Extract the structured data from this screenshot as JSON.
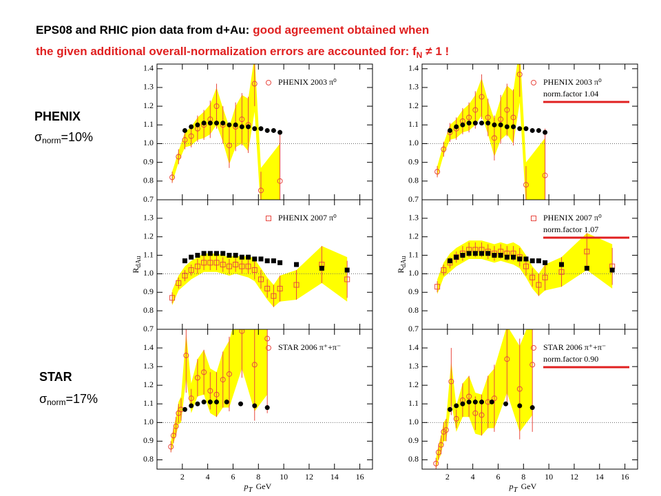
{
  "header": {
    "line1_black": "EPS08 and RHIC pion data from d+Au:",
    "line1_red": "good agreement obtained when",
    "line2": "the given additional overall-normalization errors are accounted for:  f",
    "line2_sub": "N",
    "line2_end": "≠ 1 !"
  },
  "side_labels": [
    {
      "name": "PHENIX",
      "symbol": "σ",
      "sub": "norm",
      "value": "=10%"
    },
    {
      "name": "STAR",
      "symbol": "σ",
      "sub": "norm",
      "value": "=17%"
    }
  ],
  "chart_data": [
    {
      "type": "scatter",
      "xlim": [
        0,
        17
      ],
      "ylim": [
        0.7,
        1.425
      ],
      "xticks": [
        2,
        4,
        6,
        8,
        10,
        12,
        14,
        16
      ],
      "xtick_labels": false,
      "yticks": [
        0.7,
        0.8,
        0.9,
        {
          "value": 1,
          "label": "1.0"
        },
        1.1,
        1.2,
        1.3,
        1.4
      ],
      "reference_line": 1,
      "series": [
        {
          "name": "PHENIX 2003 π⁰",
          "color": "#e8473f",
          "marker": "circle",
          "band_color": "#ffff00",
          "x": [
            1.2,
            1.7,
            2.2,
            2.7,
            3.2,
            3.7,
            4.2,
            4.7,
            5.2,
            5.7,
            6.2,
            6.7,
            7.2,
            7.7,
            8.2,
            9.7
          ],
          "values": [
            0.82,
            0.93,
            1.02,
            1.04,
            1.08,
            1.1,
            1.13,
            1.2,
            1.1,
            0.99,
            1.09,
            1.13,
            1.1,
            1.32,
            0.75,
            0.8
          ],
          "errors": [
            0.03,
            0.04,
            0.05,
            0.06,
            0.07,
            0.08,
            0.1,
            0.12,
            0.1,
            0.12,
            0.13,
            0.14,
            0.15,
            0.12,
            0.1,
            0.25
          ],
          "sys_errors": [
            0.03,
            0.03,
            0.04,
            0.05,
            0.06,
            0.07,
            0.08,
            0.1,
            0.09,
            0.1,
            0.11,
            0.13,
            0.14,
            0.15,
            0.12,
            0.2
          ]
        },
        {
          "color": "#000000",
          "marker": "dot",
          "x": [
            2.2,
            2.7,
            3.2,
            3.7,
            4.2,
            4.7,
            5.2,
            5.7,
            6.2,
            6.7,
            7.2,
            7.7,
            8.2,
            8.7,
            9.2,
            9.7
          ],
          "values": [
            1.07,
            1.09,
            1.1,
            1.11,
            1.11,
            1.11,
            1.11,
            1.1,
            1.1,
            1.09,
            1.09,
            1.08,
            1.08,
            1.07,
            1.07,
            1.06
          ]
        }
      ]
    },
    {
      "type": "scatter",
      "xlim": [
        0,
        17
      ],
      "ylim": [
        0.7,
        1.425
      ],
      "xticks": [
        2,
        4,
        6,
        8,
        10,
        12,
        14,
        16
      ],
      "xtick_labels": false,
      "yticks": [
        0.7,
        0.8,
        0.9,
        {
          "value": 1,
          "label": "1.0"
        },
        1.1,
        1.2,
        1.3,
        1.4
      ],
      "reference_line": 1,
      "norm_label": "norm.factor 1.04",
      "norm_color": "#e02020",
      "series": [
        {
          "name": "PHENIX 2003 π⁰",
          "color": "#e8473f",
          "marker": "circle",
          "band_color": "#ffff00",
          "x": [
            1.2,
            1.7,
            2.2,
            2.7,
            3.2,
            3.7,
            4.2,
            4.7,
            5.2,
            5.7,
            6.2,
            6.7,
            7.2,
            7.7,
            8.2,
            9.7
          ],
          "values": [
            0.85,
            0.97,
            1.06,
            1.08,
            1.12,
            1.14,
            1.18,
            1.25,
            1.14,
            1.03,
            1.13,
            1.18,
            1.14,
            1.37,
            0.78,
            0.83
          ],
          "errors": [
            0.03,
            0.04,
            0.05,
            0.06,
            0.07,
            0.08,
            0.1,
            0.12,
            0.1,
            0.12,
            0.13,
            0.14,
            0.15,
            0.12,
            0.1,
            0.25
          ],
          "sys_errors": [
            0.03,
            0.03,
            0.04,
            0.05,
            0.06,
            0.07,
            0.08,
            0.1,
            0.09,
            0.1,
            0.11,
            0.13,
            0.14,
            0.15,
            0.12,
            0.2
          ]
        },
        {
          "color": "#000000",
          "marker": "dot",
          "x": [
            2.2,
            2.7,
            3.2,
            3.7,
            4.2,
            4.7,
            5.2,
            5.7,
            6.2,
            6.7,
            7.2,
            7.7,
            8.2,
            8.7,
            9.2,
            9.7
          ],
          "values": [
            1.07,
            1.09,
            1.1,
            1.11,
            1.11,
            1.11,
            1.11,
            1.1,
            1.1,
            1.09,
            1.09,
            1.08,
            1.08,
            1.07,
            1.07,
            1.06
          ]
        }
      ]
    },
    {
      "type": "scatter",
      "xlim": [
        0,
        17
      ],
      "ylim": [
        0.7,
        1.4
      ],
      "xticks": [
        2,
        4,
        6,
        8,
        10,
        12,
        14,
        16
      ],
      "xtick_labels": false,
      "yticks": [
        0.7,
        0.8,
        0.9,
        {
          "value": 1,
          "label": "1.0"
        },
        1.1,
        1.2,
        1.3
      ],
      "reference_line": 1,
      "ylabel": {
        "text": "R",
        "sub": "dAu"
      },
      "series": [
        {
          "name": "PHENIX 2007 π⁰",
          "color": "#e8473f",
          "marker": "square",
          "band_color": "#ffff00",
          "x": [
            1.2,
            1.7,
            2.2,
            2.7,
            3.2,
            3.7,
            4.2,
            4.7,
            5.2,
            5.7,
            6.2,
            6.7,
            7.2,
            7.7,
            8.2,
            8.7,
            9.2,
            9.7,
            11,
            13,
            15
          ],
          "values": [
            0.87,
            0.95,
            0.99,
            1.02,
            1.04,
            1.06,
            1.06,
            1.06,
            1.05,
            1.04,
            1.05,
            1.04,
            1.04,
            1.02,
            0.97,
            0.92,
            0.88,
            0.92,
            0.94,
            1.05,
            0.97
          ],
          "errors": [
            0.03,
            0.03,
            0.03,
            0.03,
            0.04,
            0.04,
            0.04,
            0.04,
            0.04,
            0.04,
            0.04,
            0.04,
            0.04,
            0.05,
            0.05,
            0.05,
            0.06,
            0.07,
            0.08,
            0.1,
            0.1
          ],
          "sys_errors": [
            0.04,
            0.04,
            0.05,
            0.05,
            0.05,
            0.05,
            0.05,
            0.05,
            0.05,
            0.05,
            0.05,
            0.05,
            0.06,
            0.06,
            0.06,
            0.06,
            0.06,
            0.07,
            0.08,
            0.1,
            0.12
          ]
        },
        {
          "color": "#000000",
          "marker": "block",
          "x": [
            2.2,
            2.7,
            3.2,
            3.7,
            4.2,
            4.7,
            5.2,
            5.7,
            6.2,
            6.7,
            7.2,
            7.7,
            8.2,
            8.7,
            9.2,
            9.7,
            11,
            13,
            15
          ],
          "values": [
            1.07,
            1.09,
            1.1,
            1.11,
            1.11,
            1.11,
            1.11,
            1.1,
            1.1,
            1.09,
            1.09,
            1.08,
            1.08,
            1.07,
            1.07,
            1.06,
            1.05,
            1.03,
            1.02
          ]
        }
      ]
    },
    {
      "type": "scatter",
      "xlim": [
        0,
        17
      ],
      "ylim": [
        0.7,
        1.4
      ],
      "xticks": [
        2,
        4,
        6,
        8,
        10,
        12,
        14,
        16
      ],
      "xtick_labels": false,
      "yticks": [
        0.7,
        0.8,
        0.9,
        {
          "value": 1,
          "label": "1.0"
        },
        1.1,
        1.2,
        1.3
      ],
      "reference_line": 1,
      "ylabel": {
        "text": "R",
        "sub": "dAu"
      },
      "norm_label": "norm.factor 1.07",
      "norm_color": "#e02020",
      "series": [
        {
          "name": "PHENIX 2007 π⁰",
          "color": "#e8473f",
          "marker": "square",
          "band_color": "#ffff00",
          "x": [
            1.2,
            1.7,
            2.2,
            2.7,
            3.2,
            3.7,
            4.2,
            4.7,
            5.2,
            5.7,
            6.2,
            6.7,
            7.2,
            7.7,
            8.2,
            8.7,
            9.2,
            9.7,
            11,
            13,
            15
          ],
          "values": [
            0.93,
            1.02,
            1.06,
            1.09,
            1.11,
            1.13,
            1.13,
            1.13,
            1.12,
            1.11,
            1.12,
            1.11,
            1.11,
            1.09,
            1.04,
            0.98,
            0.94,
            0.98,
            1.01,
            1.12,
            1.04
          ],
          "errors": [
            0.03,
            0.03,
            0.03,
            0.03,
            0.04,
            0.04,
            0.04,
            0.04,
            0.04,
            0.04,
            0.04,
            0.04,
            0.04,
            0.05,
            0.05,
            0.05,
            0.06,
            0.07,
            0.08,
            0.1,
            0.1
          ],
          "sys_errors": [
            0.04,
            0.04,
            0.05,
            0.05,
            0.05,
            0.05,
            0.05,
            0.05,
            0.05,
            0.05,
            0.05,
            0.05,
            0.06,
            0.06,
            0.06,
            0.06,
            0.06,
            0.07,
            0.08,
            0.1,
            0.12
          ]
        },
        {
          "color": "#000000",
          "marker": "block",
          "x": [
            2.2,
            2.7,
            3.2,
            3.7,
            4.2,
            4.7,
            5.2,
            5.7,
            6.2,
            6.7,
            7.2,
            7.7,
            8.2,
            8.7,
            9.2,
            9.7,
            11,
            13,
            15
          ],
          "values": [
            1.07,
            1.09,
            1.1,
            1.11,
            1.11,
            1.11,
            1.11,
            1.1,
            1.1,
            1.09,
            1.09,
            1.08,
            1.08,
            1.07,
            1.07,
            1.06,
            1.05,
            1.03,
            1.02
          ]
        }
      ]
    },
    {
      "type": "scatter",
      "xlim": [
        0,
        17
      ],
      "ylim": [
        0.75,
        1.5
      ],
      "xticks": [
        2,
        4,
        6,
        8,
        10,
        12,
        14,
        16
      ],
      "xtick_labels": true,
      "yticks": [
        0.8,
        0.9,
        {
          "value": 1,
          "label": "1.0"
        },
        1.1,
        1.2,
        1.3,
        1.4
      ],
      "reference_line": 1,
      "xlabel": {
        "text": "p",
        "sub": "T",
        "after": "GeV"
      },
      "series": [
        {
          "name": "STAR 2006 π⁺+π⁻",
          "color": "#e8473f",
          "marker": "circle",
          "band_color": "#ffff00",
          "x": [
            1.1,
            1.3,
            1.5,
            1.7,
            1.9,
            2.3,
            2.7,
            3.2,
            3.7,
            4.2,
            4.7,
            5.2,
            5.7,
            6.7,
            7.7,
            8.7
          ],
          "values": [
            0.87,
            0.93,
            0.98,
            1.05,
            1.07,
            1.36,
            1.13,
            1.24,
            1.27,
            1.17,
            1.15,
            1.23,
            1.26,
            1.49,
            1.31,
            1.45
          ],
          "errors": [
            0.03,
            0.04,
            0.05,
            0.05,
            0.06,
            0.2,
            0.05,
            0.1,
            0.12,
            0.1,
            0.12,
            0.15,
            0.2,
            0.25,
            0.3,
            0.4
          ],
          "sys_errors": [
            0.03,
            0.04,
            0.05,
            0.06,
            0.07,
            0.12,
            0.08,
            0.1,
            0.12,
            0.12,
            0.12,
            0.15,
            0.18,
            0.2,
            0.25,
            0.3
          ]
        },
        {
          "color": "#000000",
          "marker": "dot",
          "x": [
            2.2,
            2.7,
            3.2,
            3.7,
            4.2,
            4.7,
            5.5,
            6.6,
            7.7,
            8.7
          ],
          "values": [
            1.07,
            1.09,
            1.1,
            1.11,
            1.11,
            1.11,
            1.11,
            1.1,
            1.09,
            1.08
          ]
        }
      ]
    },
    {
      "type": "scatter",
      "xlim": [
        0,
        17
      ],
      "ylim": [
        0.75,
        1.5
      ],
      "xticks": [
        2,
        4,
        6,
        8,
        10,
        12,
        14,
        16
      ],
      "xtick_labels": true,
      "yticks": [
        0.8,
        0.9,
        {
          "value": 1,
          "label": "1.0"
        },
        1.1,
        1.2,
        1.3,
        1.4
      ],
      "reference_line": 1,
      "xlabel": {
        "text": "p",
        "sub": "T",
        "after": "GeV"
      },
      "norm_label": "norm.factor 0.90",
      "norm_color": "#e02020",
      "series": [
        {
          "name": "STAR 2006 π⁺+π⁻",
          "color": "#e8473f",
          "marker": "circle",
          "band_color": "#ffff00",
          "x": [
            1.1,
            1.3,
            1.5,
            1.7,
            1.9,
            2.3,
            2.7,
            3.2,
            3.7,
            4.2,
            4.7,
            5.2,
            5.7,
            6.7,
            7.7,
            8.7
          ],
          "values": [
            0.78,
            0.84,
            0.88,
            0.95,
            0.96,
            1.22,
            1.02,
            1.12,
            1.14,
            1.05,
            1.04,
            1.11,
            1.13,
            1.34,
            1.18,
            1.31
          ],
          "errors": [
            0.03,
            0.04,
            0.05,
            0.05,
            0.06,
            0.18,
            0.05,
            0.09,
            0.11,
            0.09,
            0.11,
            0.14,
            0.18,
            0.23,
            0.27,
            0.36
          ],
          "sys_errors": [
            0.03,
            0.04,
            0.05,
            0.05,
            0.06,
            0.11,
            0.07,
            0.09,
            0.11,
            0.11,
            0.11,
            0.14,
            0.16,
            0.18,
            0.23,
            0.27
          ]
        },
        {
          "color": "#000000",
          "marker": "dot",
          "x": [
            2.2,
            2.7,
            3.2,
            3.7,
            4.2,
            4.7,
            5.5,
            6.6,
            7.7,
            8.7
          ],
          "values": [
            1.07,
            1.09,
            1.1,
            1.11,
            1.11,
            1.11,
            1.11,
            1.1,
            1.09,
            1.08
          ]
        }
      ]
    }
  ]
}
